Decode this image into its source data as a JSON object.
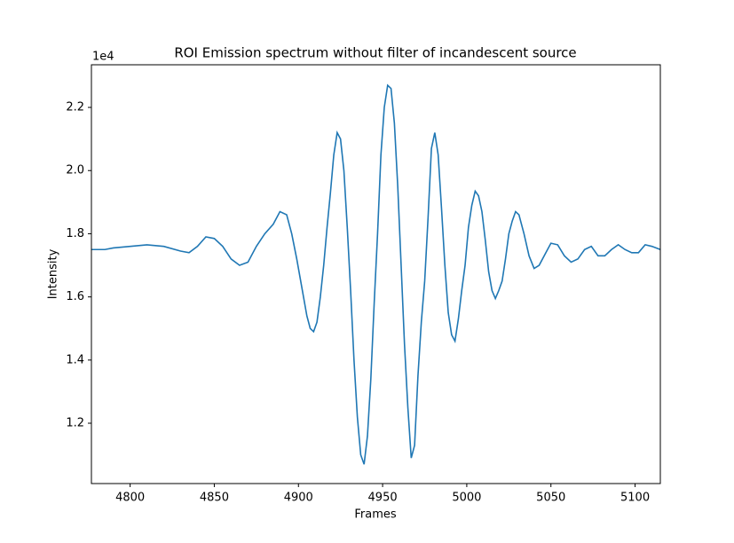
{
  "chart_data": {
    "type": "line",
    "title": "ROI Emission spectrum without filter of incandescent source",
    "xlabel": "Frames",
    "ylabel": "Intensity",
    "y_offset_label": "1e4",
    "xlim": [
      4777,
      5115
    ],
    "ylim": [
      10090,
      23350
    ],
    "xticks": [
      4800,
      4850,
      4900,
      4950,
      5000,
      5050,
      5100
    ],
    "yticks": [
      {
        "value": 12000,
        "label": "1.2"
      },
      {
        "value": 14000,
        "label": "1.4"
      },
      {
        "value": 16000,
        "label": "1.6"
      },
      {
        "value": 18000,
        "label": "1.8"
      },
      {
        "value": 20000,
        "label": "2.0"
      },
      {
        "value": 22000,
        "label": "2.2"
      }
    ],
    "series": [
      {
        "color": "#1f77b4",
        "x": [
          4777,
          4785,
          4790,
          4800,
          4810,
          4820,
          4830,
          4835,
          4840,
          4845,
          4850,
          4855,
          4860,
          4865,
          4870,
          4875,
          4880,
          4885,
          4889,
          4893,
          4896,
          4899,
          4902,
          4905,
          4907,
          4909,
          4911,
          4913,
          4915,
          4917,
          4919,
          4921,
          4923,
          4925,
          4927,
          4929,
          4931,
          4933,
          4935,
          4937,
          4939,
          4941,
          4943,
          4945,
          4947,
          4949,
          4951,
          4953,
          4955,
          4957,
          4959,
          4961,
          4963,
          4965,
          4967,
          4969,
          4971,
          4973,
          4975,
          4977,
          4979,
          4981,
          4983,
          4985,
          4987,
          4989,
          4991,
          4993,
          4995,
          4997,
          4999,
          5001,
          5003,
          5005,
          5007,
          5009,
          5011,
          5013,
          5015,
          5017,
          5019,
          5021,
          5023,
          5025,
          5027,
          5029,
          5031,
          5034,
          5037,
          5040,
          5043,
          5047,
          5050,
          5054,
          5058,
          5062,
          5066,
          5070,
          5074,
          5078,
          5082,
          5086,
          5090,
          5094,
          5098,
          5102,
          5106,
          5110,
          5115
        ],
        "values": [
          17500,
          17500,
          17550,
          17600,
          17650,
          17600,
          17450,
          17400,
          17600,
          17900,
          17850,
          17600,
          17200,
          17000,
          17100,
          17600,
          18000,
          18300,
          18700,
          18600,
          18000,
          17200,
          16300,
          15400,
          15000,
          14900,
          15200,
          16000,
          17000,
          18200,
          19300,
          20500,
          21200,
          21000,
          20000,
          18200,
          16200,
          14000,
          12200,
          11000,
          10700,
          11600,
          13400,
          15800,
          18000,
          20500,
          22000,
          22700,
          22600,
          21500,
          19500,
          17000,
          14500,
          12500,
          10900,
          11300,
          13500,
          15200,
          16500,
          18500,
          20700,
          21200,
          20500,
          18800,
          17000,
          15500,
          14800,
          14600,
          15300,
          16200,
          17000,
          18200,
          18900,
          19350,
          19200,
          18700,
          17800,
          16800,
          16200,
          15950,
          16200,
          16500,
          17200,
          18000,
          18400,
          18700,
          18600,
          18000,
          17300,
          16900,
          17000,
          17400,
          17700,
          17650,
          17300,
          17100,
          17200,
          17500,
          17600,
          17300,
          17300,
          17500,
          17650,
          17500,
          17400,
          17400,
          17650,
          17600,
          17500
        ]
      }
    ]
  }
}
